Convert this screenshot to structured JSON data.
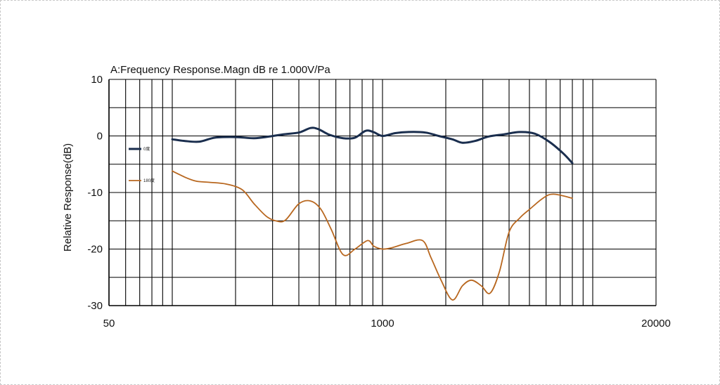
{
  "chart_data": {
    "type": "line",
    "title": "A:Frequency Response.Magn dB re 1.000V/Pa",
    "xlabel": "",
    "ylabel": "Relative Response(dB)",
    "xscale": "log",
    "xlim": [
      50,
      20000
    ],
    "ylim": [
      -30,
      10
    ],
    "xticks": [
      50,
      1000,
      20000
    ],
    "xtick_labels": [
      "50",
      "1000",
      "20000"
    ],
    "yticks": [
      10,
      0,
      -10,
      -20,
      -30
    ],
    "ytick_labels": [
      "10",
      "0",
      "-10",
      "-20",
      "-30"
    ],
    "grid": true,
    "legend_position": "left",
    "series": [
      {
        "name": "0度",
        "color": "#1a2e4e",
        "x": [
          100,
          115,
          135,
          160,
          200,
          245,
          290,
          340,
          400,
          455,
          495,
          560,
          650,
          740,
          830,
          905,
          1000,
          1150,
          1330,
          1600,
          1850,
          2150,
          2400,
          2750,
          3200,
          3800,
          4500,
          5300,
          6200,
          7200,
          8000
        ],
        "y": [
          -0.6,
          -0.9,
          -1.0,
          -0.3,
          -0.2,
          -0.4,
          -0.1,
          0.3,
          0.6,
          1.4,
          1.2,
          0.2,
          -0.4,
          -0.3,
          0.9,
          0.7,
          0.0,
          0.5,
          0.7,
          0.6,
          0.0,
          -0.6,
          -1.2,
          -0.9,
          -0.1,
          0.3,
          0.7,
          0.4,
          -1.0,
          -3.0,
          -4.8
        ]
      },
      {
        "name": "180度",
        "color": "#b8671f",
        "x": [
          100,
          115,
          130,
          150,
          180,
          215,
          245,
          280,
          310,
          345,
          400,
          455,
          510,
          570,
          650,
          740,
          850,
          910,
          1000,
          1100,
          1300,
          1550,
          1700,
          1900,
          2150,
          2400,
          2650,
          2950,
          3250,
          3600,
          4000,
          4500,
          5000,
          5800,
          6500,
          8000
        ],
        "y": [
          -6.2,
          -7.3,
          -8.0,
          -8.2,
          -8.5,
          -9.5,
          -12.0,
          -14.2,
          -15.0,
          -14.9,
          -12.0,
          -11.5,
          -13.0,
          -16.5,
          -21.0,
          -20.0,
          -18.5,
          -19.5,
          -20.0,
          -19.8,
          -19.0,
          -18.5,
          -21.5,
          -25.5,
          -29.0,
          -26.5,
          -25.5,
          -26.5,
          -27.8,
          -24.0,
          -17.0,
          -14.5,
          -13.0,
          -11.0,
          -10.3,
          -11.0
        ]
      }
    ]
  }
}
